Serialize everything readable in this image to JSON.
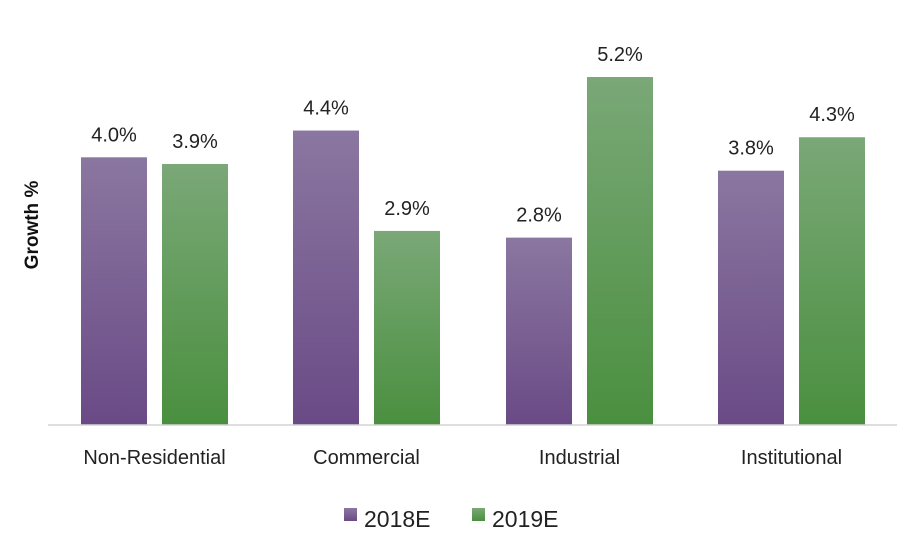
{
  "chart_data": {
    "type": "bar",
    "title": "",
    "xlabel": "",
    "ylabel": "Growth %",
    "ylim": [
      0,
      5.2
    ],
    "grid": false,
    "legend_position": "bottom-center",
    "categories": [
      "Non-Residential",
      "Commercial",
      "Industrial",
      "Institutional"
    ],
    "series": [
      {
        "name": "2018E",
        "color_top": "#8a77a0",
        "color_bottom": "#6a4a86",
        "values": [
          4.0,
          4.4,
          2.8,
          3.8
        ],
        "labels": [
          "4.0%",
          "4.4%",
          "2.8%",
          "3.8%"
        ]
      },
      {
        "name": "2019E",
        "color_top": "#7aa877",
        "color_bottom": "#4a8f3f",
        "values": [
          3.9,
          2.9,
          5.2,
          4.3
        ],
        "labels": [
          "3.9%",
          "2.9%",
          "5.2%",
          "4.3%"
        ]
      }
    ]
  }
}
